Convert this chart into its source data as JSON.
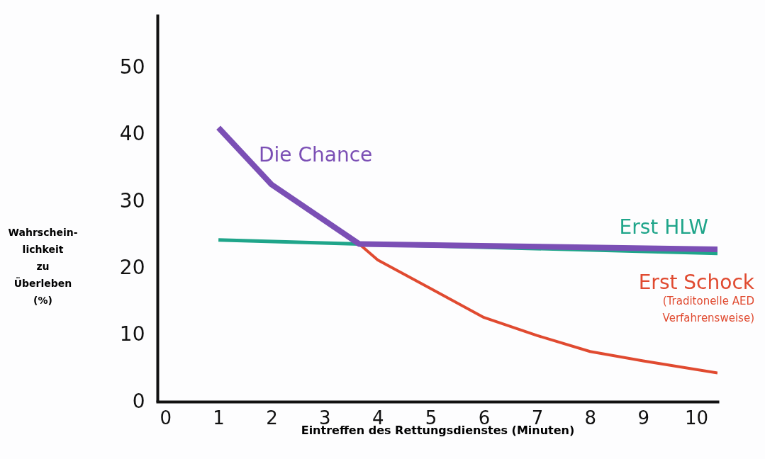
{
  "chart_data": {
    "type": "line",
    "xlabel": "Eintreffen des Rettungsdienstes (Minuten)",
    "ylabel": "Wahrschein-lichkeit zu Überleben (%)",
    "xlim": [
      -0.15,
      10.4
    ],
    "xticks": [
      0,
      1,
      2,
      3,
      4,
      5,
      6,
      7,
      8,
      9,
      10
    ],
    "ylim": [
      0,
      58
    ],
    "yticks": [
      0,
      10,
      20,
      30,
      40,
      50
    ],
    "grid": false,
    "marker": "none",
    "line_style": "solid",
    "series": [
      {
        "name": "Die Chance",
        "color": "#7b4fb5",
        "x": [
          1,
          2,
          3.65,
          10.4
        ],
        "values": [
          41,
          32.5,
          23.6,
          22.8
        ]
      },
      {
        "name": "Erst HLW",
        "color": "#1fa58a",
        "x": [
          1,
          3.65,
          10.4
        ],
        "values": [
          24.2,
          23.6,
          22.2
        ]
      },
      {
        "name": "Erst Schock",
        "color": "#e04a30",
        "x": [
          3.65,
          4,
          5,
          6,
          7,
          8,
          9,
          10.4
        ],
        "values": [
          23.6,
          21.2,
          16.9,
          12.6,
          9.9,
          7.5,
          6.1,
          4.3
        ]
      }
    ],
    "annotations": [
      "(Traditonelle AED Verfahrensweise)"
    ]
  }
}
